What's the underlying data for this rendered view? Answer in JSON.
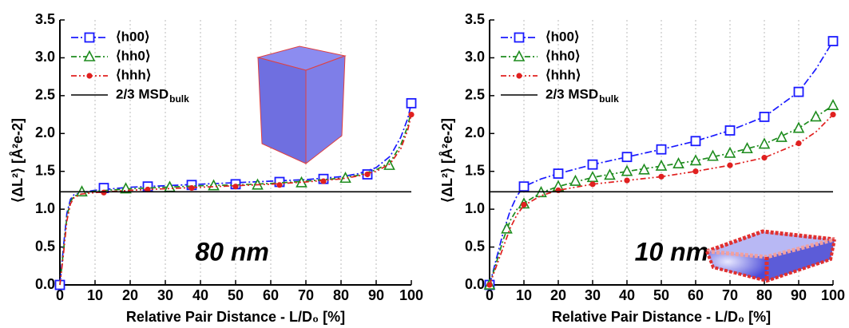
{
  "chart_data": [
    {
      "type": "line",
      "annotation": "80 nm",
      "x_label": "Relative Pair Distance - L/D₀ [%]",
      "y_label": "⟨ΔL²⟩ [Å²e-2]",
      "xlim": [
        0,
        100
      ],
      "ylim": [
        0,
        3.5
      ],
      "xticks": [
        0,
        10,
        20,
        30,
        40,
        50,
        60,
        70,
        80,
        90,
        100
      ],
      "yticks": [
        {
          "value": 0,
          "label": "0.0"
        },
        0.5,
        {
          "value": 1,
          "label": "1.0"
        },
        1.5,
        {
          "value": 2,
          "label": "2.0"
        },
        2.5,
        {
          "value": 3,
          "label": "3.0"
        },
        3.5
      ],
      "grid": true,
      "legend": "upper left",
      "series": [
        {
          "name": "⟨h00⟩",
          "color": "#1a1aff",
          "marker": "square",
          "x": [
            0,
            12.5,
            25,
            37.5,
            50,
            62.5,
            75,
            87.5,
            100
          ],
          "values": [
            0,
            1.28,
            1.3,
            1.32,
            1.33,
            1.36,
            1.4,
            1.46,
            2.4
          ],
          "curve_x": [
            0,
            1,
            2,
            3,
            4,
            6,
            10,
            20,
            30,
            40,
            50,
            60,
            70,
            80,
            85,
            90,
            94,
            97,
            99,
            100
          ],
          "curve_values": [
            0,
            0.5,
            0.95,
            1.13,
            1.19,
            1.22,
            1.25,
            1.29,
            1.31,
            1.33,
            1.35,
            1.37,
            1.39,
            1.43,
            1.47,
            1.55,
            1.7,
            1.95,
            2.2,
            2.4
          ]
        },
        {
          "name": "⟨hh0⟩",
          "color": "#1e8c1e",
          "marker": "triangle",
          "x": [
            6.25,
            18.75,
            31.25,
            43.75,
            56.25,
            68.75,
            81.25,
            93.75
          ],
          "values": [
            1.23,
            1.27,
            1.29,
            1.31,
            1.32,
            1.35,
            1.41,
            1.58
          ],
          "curve_x": [
            0,
            1,
            2,
            3,
            4,
            6,
            10,
            20,
            30,
            40,
            50,
            60,
            70,
            80,
            85,
            90,
            94,
            97,
            99,
            100
          ],
          "curve_values": [
            0,
            0.45,
            0.9,
            1.1,
            1.17,
            1.21,
            1.24,
            1.27,
            1.29,
            1.31,
            1.32,
            1.34,
            1.37,
            1.41,
            1.45,
            1.52,
            1.62,
            1.85,
            2.1,
            2.3
          ]
        },
        {
          "name": "⟨hhh⟩",
          "color": "#e0201f",
          "marker": "dot",
          "x": [
            12.5,
            25,
            37.5,
            50,
            62.5,
            75,
            87.5,
            100
          ],
          "values": [
            1.22,
            1.26,
            1.28,
            1.3,
            1.32,
            1.37,
            1.46,
            2.25
          ],
          "curve_x": [
            0,
            1,
            2,
            3,
            4,
            6,
            10,
            20,
            30,
            40,
            50,
            60,
            70,
            80,
            85,
            90,
            94,
            97,
            99,
            100
          ],
          "curve_values": [
            0,
            0.4,
            0.85,
            1.07,
            1.15,
            1.2,
            1.22,
            1.25,
            1.27,
            1.29,
            1.31,
            1.33,
            1.36,
            1.4,
            1.44,
            1.5,
            1.6,
            1.8,
            2.05,
            2.25
          ]
        },
        {
          "name": "2/3 MSD",
          "name_sub": "bulk",
          "color": "#000000",
          "hline": 1.23
        }
      ]
    },
    {
      "type": "line",
      "annotation": "10 nm",
      "x_label": "Relative Pair Distance - L/D₀ [%]",
      "y_label": "⟨ΔL²⟩ [Å²e-2]",
      "xlim": [
        0,
        100
      ],
      "ylim": [
        0,
        3.5
      ],
      "xticks": [
        0,
        10,
        20,
        30,
        40,
        50,
        60,
        70,
        80,
        90,
        100
      ],
      "yticks": [
        {
          "value": 0,
          "label": "0.0"
        },
        0.5,
        {
          "value": 1,
          "label": "1.0"
        },
        1.5,
        {
          "value": 2,
          "label": "2.0"
        },
        2.5,
        {
          "value": 3,
          "label": "3.0"
        },
        3.5
      ],
      "grid": true,
      "legend": "upper left",
      "series": [
        {
          "name": "⟨h00⟩",
          "color": "#1a1aff",
          "marker": "square",
          "x": [
            0,
            10,
            20,
            30,
            40,
            50,
            60,
            70,
            80,
            90,
            100
          ],
          "values": [
            0,
            1.3,
            1.47,
            1.59,
            1.69,
            1.79,
            1.9,
            2.04,
            2.22,
            2.55,
            3.22
          ],
          "curve_x": [
            0,
            2,
            4,
            6,
            8,
            10,
            15,
            20,
            30,
            40,
            50,
            60,
            70,
            80,
            90,
            95,
            100
          ],
          "curve_values": [
            0,
            0.35,
            0.7,
            0.98,
            1.18,
            1.3,
            1.4,
            1.47,
            1.59,
            1.69,
            1.79,
            1.9,
            2.04,
            2.22,
            2.55,
            2.85,
            3.22
          ]
        },
        {
          "name": "⟨hh0⟩",
          "color": "#1e8c1e",
          "marker": "triangle",
          "x": [
            0,
            5,
            10,
            15,
            20,
            25,
            30,
            35,
            40,
            45,
            50,
            55,
            60,
            65,
            70,
            75,
            80,
            85,
            90,
            95,
            100
          ],
          "values": [
            0,
            0.74,
            1.07,
            1.22,
            1.3,
            1.37,
            1.42,
            1.45,
            1.5,
            1.52,
            1.57,
            1.6,
            1.64,
            1.7,
            1.74,
            1.8,
            1.86,
            1.95,
            2.07,
            2.22,
            2.37
          ],
          "curve_x": [
            0,
            2,
            4,
            6,
            8,
            10,
            15,
            20,
            30,
            40,
            50,
            60,
            70,
            80,
            90,
            95,
            100
          ],
          "curve_values": [
            0,
            0.3,
            0.6,
            0.85,
            1.0,
            1.08,
            1.22,
            1.3,
            1.42,
            1.5,
            1.57,
            1.64,
            1.74,
            1.86,
            2.07,
            2.22,
            2.37
          ]
        },
        {
          "name": "⟨hhh⟩",
          "color": "#e0201f",
          "marker": "dot",
          "x": [
            0,
            10,
            20,
            30,
            40,
            50,
            60,
            70,
            80,
            90,
            100
          ],
          "values": [
            0,
            1.06,
            1.25,
            1.33,
            1.38,
            1.43,
            1.5,
            1.58,
            1.68,
            1.87,
            2.25
          ],
          "curve_x": [
            0,
            2,
            4,
            6,
            8,
            10,
            15,
            20,
            30,
            40,
            50,
            60,
            70,
            80,
            90,
            95,
            100
          ],
          "curve_values": [
            0,
            0.25,
            0.5,
            0.75,
            0.93,
            1.05,
            1.18,
            1.25,
            1.33,
            1.38,
            1.43,
            1.5,
            1.58,
            1.68,
            1.87,
            2.02,
            2.25
          ]
        },
        {
          "name": "2/3 MSD",
          "name_sub": "bulk",
          "color": "#000000",
          "hline": 1.23
        }
      ]
    }
  ]
}
